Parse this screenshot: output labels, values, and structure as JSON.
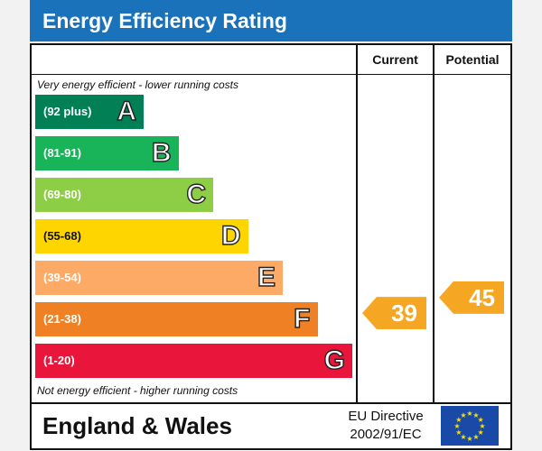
{
  "chart_data": {
    "type": "bar",
    "title": "Energy Efficiency Rating",
    "columns": [
      "Current",
      "Potential"
    ],
    "top_note": "Very energy efficient - lower running costs",
    "bottom_note": "Not energy efficient - higher running costs",
    "bands": [
      {
        "letter": "A",
        "range": "(92 plus)",
        "min": 92,
        "max": 100,
        "color": "#008054"
      },
      {
        "letter": "B",
        "range": "(81-91)",
        "min": 81,
        "max": 91,
        "color": "#19b459"
      },
      {
        "letter": "C",
        "range": "(69-80)",
        "min": 69,
        "max": 80,
        "color": "#8dce46"
      },
      {
        "letter": "D",
        "range": "(55-68)",
        "min": 55,
        "max": 68,
        "color": "#ffd500"
      },
      {
        "letter": "E",
        "range": "(39-54)",
        "min": 39,
        "max": 54,
        "color": "#fcaa65"
      },
      {
        "letter": "F",
        "range": "(21-38)",
        "min": 21,
        "max": 38,
        "color": "#ef8023"
      },
      {
        "letter": "G",
        "range": "(1-20)",
        "min": 1,
        "max": 20,
        "color": "#e9153b"
      }
    ],
    "current": {
      "value": 39,
      "band": "E"
    },
    "potential": {
      "value": 45,
      "band": "E"
    },
    "arrow_color": "#f5a623"
  },
  "footer": {
    "region": "England & Wales",
    "directive_line1": "EU Directive",
    "directive_line2": "2002/91/EC"
  },
  "colors": {
    "title_bar": "#1a72bb",
    "eu_flag_blue": "#1a4aa8",
    "eu_flag_star": "#ffdd00"
  }
}
